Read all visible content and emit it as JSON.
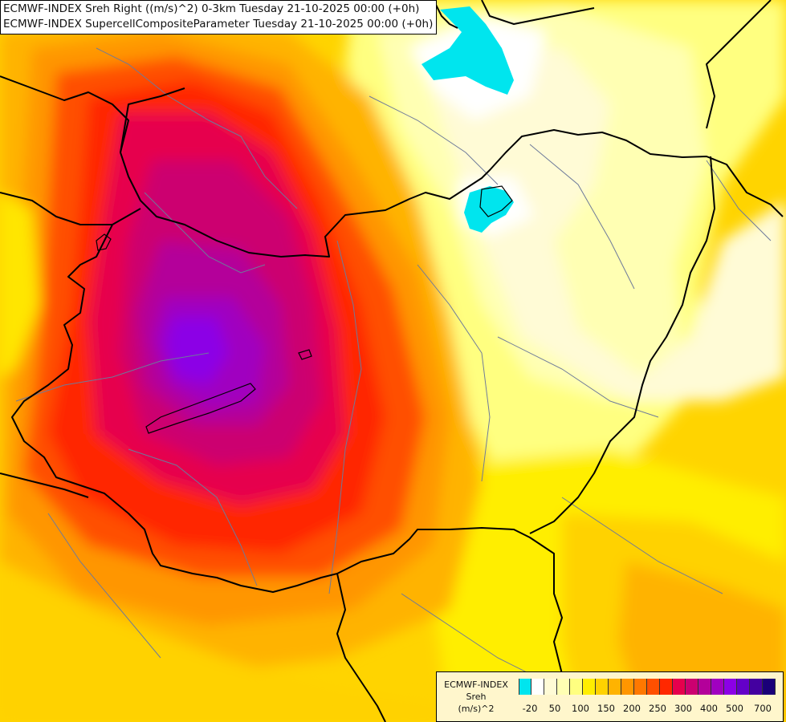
{
  "title": {
    "line1": "ECMWF-INDEX Sreh Right ((m/s)^2) 0-3km Tuesday 21-10-2025 00:00 (+0h)",
    "line2": "ECMWF-INDEX SupercellCompositeParameter Tuesday 21-10-2025 00:00 (+0h)"
  },
  "legend": {
    "line1": "ECMWF-INDEX",
    "line2": "Sreh",
    "line3": "(m/s)^2",
    "tick_labels": [
      "-20",
      "50",
      "100",
      "150",
      "200",
      "250",
      "300",
      "400",
      "500",
      "700"
    ],
    "colors": [
      "#00e5ee",
      "#ffffff",
      "#fffbd6",
      "#ffffb3",
      "#ffff80",
      "#ffee00",
      "#ffd200",
      "#ffb300",
      "#ff9600",
      "#ff7800",
      "#ff5000",
      "#ff2800",
      "#e6004d",
      "#cc0070",
      "#b4009a",
      "#a000c0",
      "#8c00e6",
      "#6400c8",
      "#4400a0",
      "#1a0078"
    ]
  }
}
